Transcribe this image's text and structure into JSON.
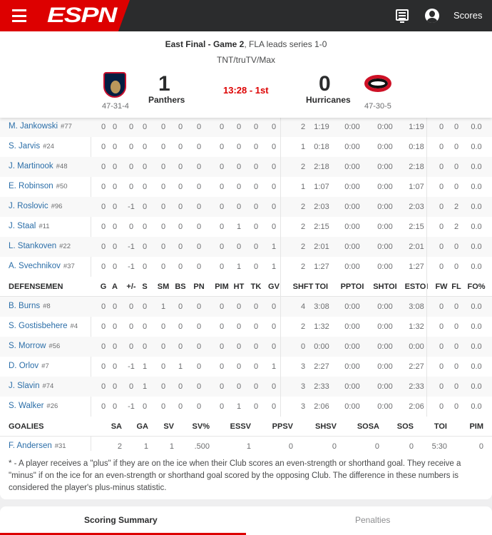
{
  "header": {
    "brand": "ESPN",
    "scores_label": "Scores",
    "brand_color": "#d00000"
  },
  "game": {
    "series_bold": "East Final - Game 2",
    "series_rest": ", FLA leads series 1-0",
    "broadcast": "TNT/truTV/Max",
    "clock": "13:28 - 1st",
    "home": {
      "name": "Panthers",
      "score": "1",
      "record": "47-31-4"
    },
    "away": {
      "name": "Hurricanes",
      "score": "0",
      "record": "47-30-5"
    }
  },
  "skater_columns": [
    "G",
    "A",
    "+/-",
    "S",
    "SM",
    "BS",
    "PN",
    "PIM",
    "HT",
    "TK",
    "GV",
    "SHFT",
    "TOI",
    "PPTOI",
    "SHTOI",
    "ESTOI",
    "FW",
    "FL",
    "FO%"
  ],
  "forwards": [
    {
      "name": "M. Jankowski",
      "num": "#77",
      "stats": [
        "0",
        "0",
        "0",
        "0",
        "0",
        "0",
        "0",
        "0",
        "0",
        "0",
        "0",
        "2",
        "1:19",
        "0:00",
        "0:00",
        "1:19",
        "0",
        "0",
        "0.0"
      ]
    },
    {
      "name": "S. Jarvis",
      "num": "#24",
      "stats": [
        "0",
        "0",
        "0",
        "0",
        "0",
        "0",
        "0",
        "0",
        "0",
        "0",
        "0",
        "1",
        "0:18",
        "0:00",
        "0:00",
        "0:18",
        "0",
        "0",
        "0.0"
      ]
    },
    {
      "name": "J. Martinook",
      "num": "#48",
      "stats": [
        "0",
        "0",
        "0",
        "0",
        "0",
        "0",
        "0",
        "0",
        "0",
        "0",
        "0",
        "2",
        "2:18",
        "0:00",
        "0:00",
        "2:18",
        "0",
        "0",
        "0.0"
      ]
    },
    {
      "name": "E. Robinson",
      "num": "#50",
      "stats": [
        "0",
        "0",
        "0",
        "0",
        "0",
        "0",
        "0",
        "0",
        "0",
        "0",
        "0",
        "1",
        "1:07",
        "0:00",
        "0:00",
        "1:07",
        "0",
        "0",
        "0.0"
      ]
    },
    {
      "name": "J. Roslovic",
      "num": "#96",
      "stats": [
        "0",
        "0",
        "-1",
        "0",
        "0",
        "0",
        "0",
        "0",
        "0",
        "0",
        "0",
        "2",
        "2:03",
        "0:00",
        "0:00",
        "2:03",
        "0",
        "2",
        "0.0"
      ]
    },
    {
      "name": "J. Staal",
      "num": "#11",
      "stats": [
        "0",
        "0",
        "0",
        "0",
        "0",
        "0",
        "0",
        "0",
        "1",
        "0",
        "0",
        "2",
        "2:15",
        "0:00",
        "0:00",
        "2:15",
        "0",
        "2",
        "0.0"
      ]
    },
    {
      "name": "L. Stankoven",
      "num": "#22",
      "stats": [
        "0",
        "0",
        "-1",
        "0",
        "0",
        "0",
        "0",
        "0",
        "0",
        "0",
        "1",
        "2",
        "2:01",
        "0:00",
        "0:00",
        "2:01",
        "0",
        "0",
        "0.0"
      ]
    },
    {
      "name": "A. Svechnikov",
      "num": "#37",
      "stats": [
        "0",
        "0",
        "-1",
        "0",
        "0",
        "0",
        "0",
        "0",
        "1",
        "0",
        "1",
        "2",
        "1:27",
        "0:00",
        "0:00",
        "1:27",
        "0",
        "0",
        "0.0"
      ]
    }
  ],
  "defensemen_label": "DEFENSEMEN",
  "defensemen": [
    {
      "name": "B. Burns",
      "num": "#8",
      "stats": [
        "0",
        "0",
        "0",
        "0",
        "1",
        "0",
        "0",
        "0",
        "0",
        "0",
        "0",
        "4",
        "3:08",
        "0:00",
        "0:00",
        "3:08",
        "0",
        "0",
        "0.0"
      ]
    },
    {
      "name": "S. Gostisbehere",
      "num": "#4",
      "stats": [
        "0",
        "0",
        "0",
        "0",
        "0",
        "0",
        "0",
        "0",
        "0",
        "0",
        "0",
        "2",
        "1:32",
        "0:00",
        "0:00",
        "1:32",
        "0",
        "0",
        "0.0"
      ]
    },
    {
      "name": "S. Morrow",
      "num": "#56",
      "stats": [
        "0",
        "0",
        "0",
        "0",
        "0",
        "0",
        "0",
        "0",
        "0",
        "0",
        "0",
        "0",
        "0:00",
        "0:00",
        "0:00",
        "0:00",
        "0",
        "0",
        "0.0"
      ]
    },
    {
      "name": "D. Orlov",
      "num": "#7",
      "stats": [
        "0",
        "0",
        "-1",
        "1",
        "0",
        "1",
        "0",
        "0",
        "0",
        "0",
        "1",
        "3",
        "2:27",
        "0:00",
        "0:00",
        "2:27",
        "0",
        "0",
        "0.0"
      ]
    },
    {
      "name": "J. Slavin",
      "num": "#74",
      "stats": [
        "0",
        "0",
        "0",
        "1",
        "0",
        "0",
        "0",
        "0",
        "0",
        "0",
        "0",
        "3",
        "2:33",
        "0:00",
        "0:00",
        "2:33",
        "0",
        "0",
        "0.0"
      ]
    },
    {
      "name": "S. Walker",
      "num": "#26",
      "stats": [
        "0",
        "0",
        "-1",
        "0",
        "0",
        "0",
        "0",
        "0",
        "1",
        "0",
        "0",
        "3",
        "2:06",
        "0:00",
        "0:00",
        "2:06",
        "0",
        "0",
        "0.0"
      ]
    }
  ],
  "goalies_label": "GOALIES",
  "goalie_columns": [
    "SA",
    "GA",
    "SV",
    "SV%",
    "ESSV",
    "PPSV",
    "SHSV",
    "SOSA",
    "SOS",
    "TOI",
    "PIM"
  ],
  "goalies": [
    {
      "name": "F. Andersen",
      "num": "#31",
      "stats": [
        "2",
        "1",
        "1",
        ".500",
        "1",
        "0",
        "0",
        "0",
        "0",
        "5:30",
        "0"
      ]
    }
  ],
  "footnote": "* - A player receives a \"plus\" if they are on the ice when their Club scores an even-strength or shorthand goal. They receive a \"minus\" if on the ice for an even-strength or shorthand goal scored by the opposing Club. The difference in these numbers is considered the player's plus-minus statistic.",
  "tabs": [
    {
      "label": "Scoring Summary",
      "active": true
    },
    {
      "label": "Penalties",
      "active": false
    }
  ]
}
